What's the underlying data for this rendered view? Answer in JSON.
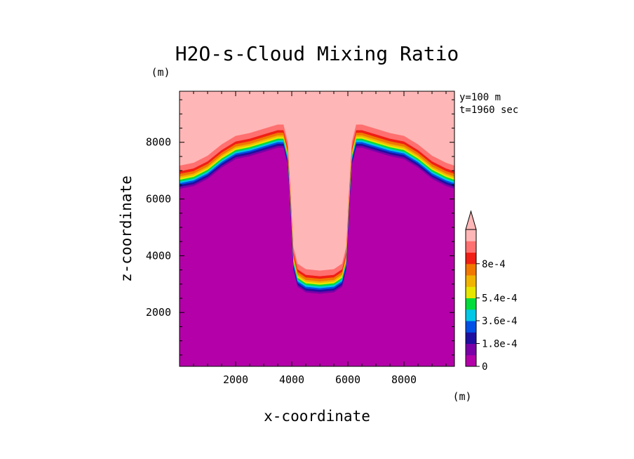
{
  "chart_data": {
    "type": "contour",
    "title": "H2O-s-Cloud Mixing Ratio",
    "xlabel": "x-coordinate",
    "ylabel": "z-coordinate",
    "x_unit": "(m)",
    "z_unit": "(m)",
    "annotations": [
      "y=100 m",
      "t=1960 sec"
    ],
    "xlim": [
      0,
      9800
    ],
    "zlim": [
      100,
      9800
    ],
    "x_ticks": [
      2000,
      4000,
      6000,
      8000
    ],
    "z_ticks": [
      2000,
      4000,
      6000,
      8000
    ],
    "colorbar": {
      "levels": [
        0,
        9e-05,
        0.00018,
        0.00027,
        0.00036,
        0.00045,
        0.00054,
        0.00063,
        0.00072,
        0.0008
      ],
      "labels": [
        "0",
        "1.8e-4",
        "3.6e-4",
        "5.4e-4",
        "8e-4"
      ],
      "label_values": [
        0,
        0.00018,
        0.00036,
        0.00054,
        0.0008
      ],
      "colors": [
        "#b400a8",
        "#7a00a8",
        "#1e0fa0",
        "#0050e6",
        "#00c8e6",
        "#00dc3c",
        "#e6e600",
        "#f0b400",
        "#f07800",
        "#f01e14",
        "#ff7070",
        "#ffb6b6"
      ],
      "extend": "max"
    },
    "field": {
      "max_color": "#ffb6b6",
      "min_color": "#b400a8",
      "boundary_x": [
        0,
        500,
        1000,
        1500,
        2000,
        2500,
        3000,
        3500,
        3700,
        3850,
        3950,
        4050,
        4200,
        4500,
        5000,
        5500,
        5800,
        5950,
        6050,
        6150,
        6300,
        6500,
        7000,
        7500,
        8000,
        8500,
        9000,
        9500,
        9800
      ],
      "boundary_z": [
        6350,
        6450,
        6700,
        7100,
        7400,
        7500,
        7650,
        7800,
        7800,
        7200,
        5500,
        3500,
        2900,
        2700,
        2650,
        2700,
        2900,
        3500,
        5500,
        7200,
        7800,
        7800,
        7650,
        7500,
        7400,
        7100,
        6700,
        6450,
        6350
      ],
      "band_offsets_m": [
        0,
        70,
        140,
        200,
        260,
        320,
        380,
        440,
        530,
        620,
        820
      ]
    }
  }
}
